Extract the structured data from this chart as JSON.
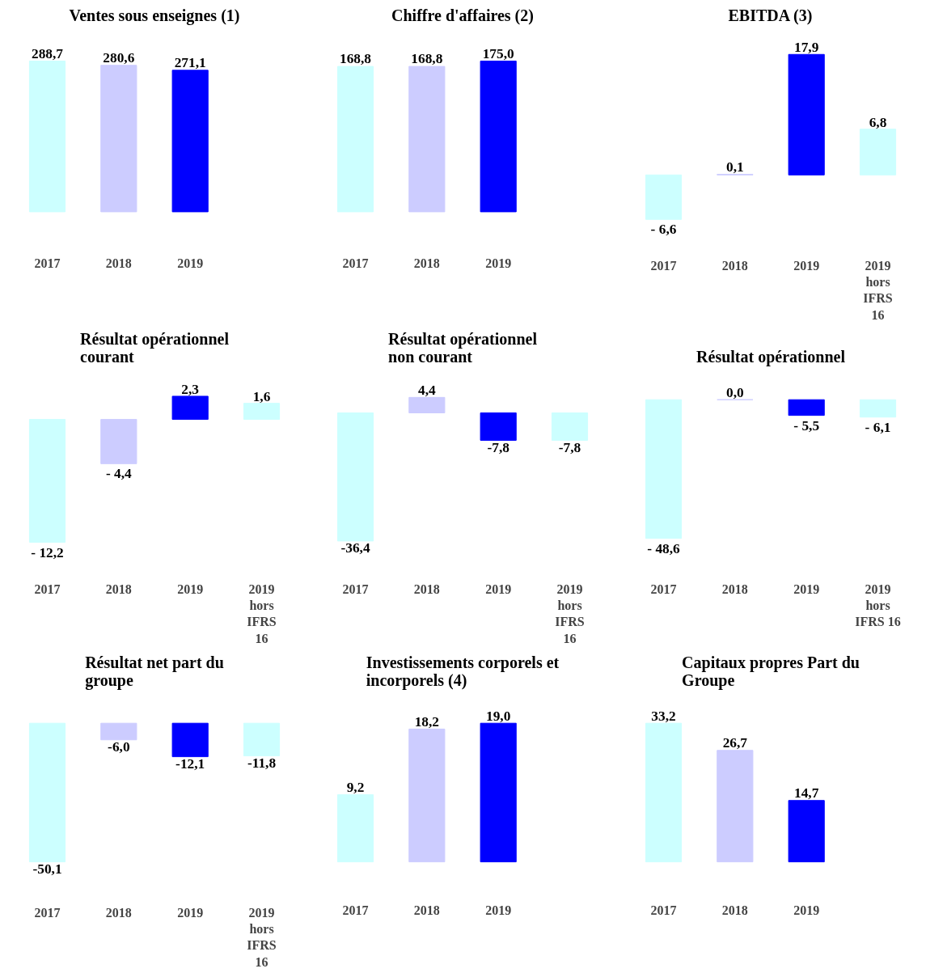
{
  "chart_data": [
    {
      "type": "bar",
      "title": "Ventes sous enseignes (1)",
      "categories": [
        "2017",
        "2018",
        "2019"
      ],
      "values": [
        288.7,
        280.6,
        271.1
      ],
      "value_labels": [
        "288,7",
        "280,6",
        "271,1"
      ],
      "colors": [
        "#ccffff",
        "#ccccff",
        "#0000ff"
      ]
    },
    {
      "type": "bar",
      "title": "Chiffre d'affaires (2)",
      "categories": [
        "2017",
        "2018",
        "2019"
      ],
      "values": [
        168.8,
        168.8,
        175.0
      ],
      "value_labels": [
        "168,8",
        "168,8",
        "175,0"
      ],
      "colors": [
        "#ccffff",
        "#ccccff",
        "#0000ff"
      ]
    },
    {
      "type": "bar",
      "title": "EBITDA (3)",
      "categories": [
        "2017",
        "2018",
        "2019",
        "2019\nhors\nIFRS\n16"
      ],
      "values": [
        -6.6,
        0.1,
        17.9,
        6.8
      ],
      "value_labels": [
        "- 6,6",
        "0,1",
        "17,9",
        "6,8"
      ],
      "colors": [
        "#ccffff",
        "#ccccff",
        "#0000ff",
        "#ccffff"
      ]
    },
    {
      "type": "bar",
      "title": "Résultat opérationnel\ncourant",
      "categories": [
        "2017",
        "2018",
        "2019",
        "2019\nhors\nIFRS\n16"
      ],
      "values": [
        -12.2,
        -4.4,
        2.3,
        1.6
      ],
      "value_labels": [
        "- 12,2",
        "- 4,4",
        "2,3",
        "1,6"
      ],
      "colors": [
        "#ccffff",
        "#ccccff",
        "#0000ff",
        "#ccffff"
      ]
    },
    {
      "type": "bar",
      "title": "Résultat opérationnel\nnon courant",
      "categories": [
        "2017",
        "2018",
        "2019",
        "2019\nhors\nIFRS\n16"
      ],
      "values": [
        -36.4,
        4.4,
        -7.8,
        -7.8
      ],
      "value_labels": [
        "-36,4",
        "4,4",
        "-7,8",
        "-7,8"
      ],
      "colors": [
        "#ccffff",
        "#ccccff",
        "#0000ff",
        "#ccffff"
      ]
    },
    {
      "type": "bar",
      "title": "Résultat opérationnel",
      "categories": [
        "2017",
        "2018",
        "2019",
        "2019\nhors\nIFRS 16"
      ],
      "values": [
        -48.6,
        0.0,
        -5.5,
        -6.1
      ],
      "value_labels": [
        "- 48,6",
        "0,0",
        "- 5,5",
        "- 6,1"
      ],
      "colors": [
        "#ccffff",
        "#ccccff",
        "#0000ff",
        "#ccffff"
      ]
    },
    {
      "type": "bar",
      "title": "Résultat net part du\ngroupe",
      "categories": [
        "2017",
        "2018",
        "2019",
        "2019\nhors\nIFRS\n16"
      ],
      "values": [
        -50.1,
        -6.0,
        -12.1,
        -11.8
      ],
      "value_labels": [
        "-50,1",
        "-6,0",
        "-12,1",
        "-11,8"
      ],
      "colors": [
        "#ccffff",
        "#ccccff",
        "#0000ff",
        "#ccffff"
      ]
    },
    {
      "type": "bar",
      "title": "Investissements corporels et\nincorporels (4)",
      "categories": [
        "2017",
        "2018",
        "2019"
      ],
      "values": [
        9.2,
        18.2,
        19.0
      ],
      "value_labels": [
        "9,2",
        "18,2",
        "19,0"
      ],
      "colors": [
        "#ccffff",
        "#ccccff",
        "#0000ff"
      ]
    },
    {
      "type": "bar",
      "title": "Capitaux propres Part du\nGroupe",
      "categories": [
        "2017",
        "2018",
        "2019"
      ],
      "values": [
        33.2,
        26.7,
        14.7
      ],
      "value_labels": [
        "33,2",
        "26,7",
        "14,7"
      ],
      "colors": [
        "#ccffff",
        "#ccccff",
        "#0000ff"
      ]
    }
  ]
}
